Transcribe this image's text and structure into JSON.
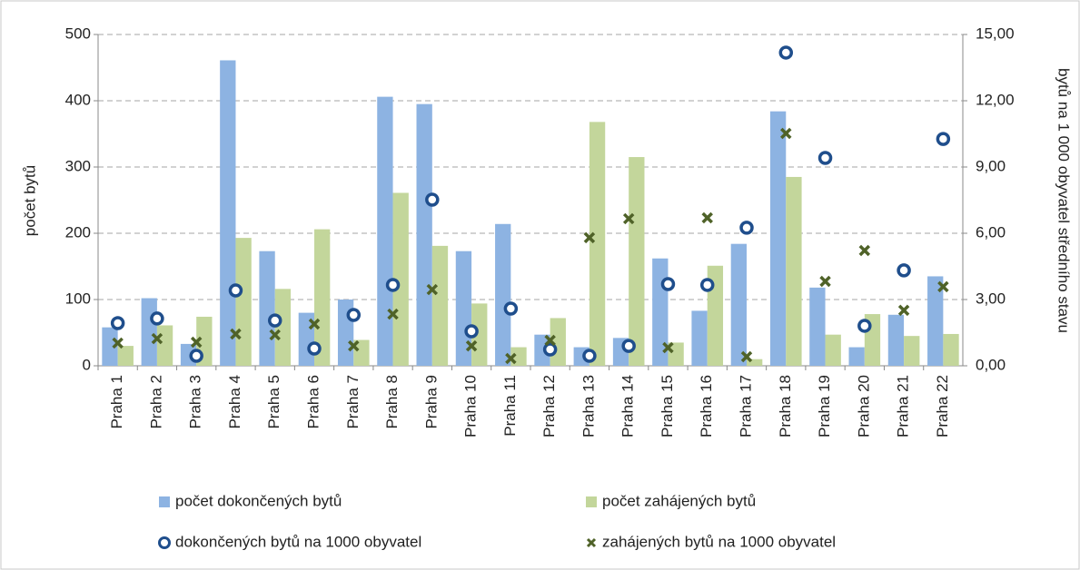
{
  "chart_data": {
    "type": "bar",
    "y_label": "počet bytů",
    "y2_label": "bytů na 1 000 obyvatel středního stavu",
    "categories": [
      "Praha 1",
      "Praha 2",
      "Praha 3",
      "Praha 4",
      "Praha 5",
      "Praha 6",
      "Praha 7",
      "Praha 8",
      "Praha 9",
      "Praha 10",
      "Praha 11",
      "Praha 12",
      "Praha 13",
      "Praha 14",
      "Praha 15",
      "Praha 16",
      "Praha 17",
      "Praha 18",
      "Praha 19",
      "Praha 20",
      "Praha 21",
      "Praha 22"
    ],
    "series": [
      {
        "name": "počet dokončených bytů",
        "type": "bar",
        "color": "#8db3e2",
        "values": [
          58,
          102,
          33,
          461,
          173,
          80,
          100,
          406,
          395,
          173,
          214,
          47,
          28,
          42,
          162,
          83,
          184,
          384,
          118,
          28,
          77,
          135
        ]
      },
      {
        "name": "počet zahájených bytů",
        "type": "bar",
        "color": "#c3d69b",
        "values": [
          30,
          61,
          74,
          193,
          116,
          206,
          39,
          261,
          181,
          94,
          28,
          72,
          368,
          315,
          35,
          151,
          10,
          285,
          47,
          78,
          45,
          48
        ]
      },
      {
        "name": "dokončených bytů na 1000 obyvatel",
        "type": "scatter",
        "marker": "o",
        "color": "#1f4e8c",
        "axis": "y2",
        "values": [
          1.93,
          2.14,
          0.45,
          3.41,
          2.05,
          0.78,
          2.3,
          3.66,
          7.52,
          1.56,
          2.59,
          0.74,
          0.45,
          0.9,
          3.7,
          3.66,
          6.25,
          14.18,
          9.41,
          1.81,
          4.32,
          10.27
        ]
      },
      {
        "name": "zahájených bytů na 1000 obyvatel",
        "type": "scatter",
        "marker": "x",
        "color": "#4f6228",
        "axis": "y2",
        "values": [
          1.03,
          1.23,
          1.07,
          1.44,
          1.4,
          1.89,
          0.9,
          2.34,
          3.45,
          0.9,
          0.33,
          1.15,
          5.8,
          6.66,
          0.82,
          6.7,
          0.41,
          10.52,
          3.82,
          5.22,
          2.51,
          3.58
        ]
      }
    ],
    "ylim": [
      0,
      500
    ],
    "yticks": [
      0,
      100,
      200,
      300,
      400,
      500
    ],
    "y2lim": [
      0,
      15
    ],
    "y2ticks": [
      {
        "value": 0,
        "label": "0,00"
      },
      {
        "value": 3,
        "label": "3,00"
      },
      {
        "value": 6,
        "label": "6,00"
      },
      {
        "value": 9,
        "label": "9,00"
      },
      {
        "value": 12,
        "label": "12,00"
      },
      {
        "value": 15,
        "label": "15,00"
      }
    ],
    "grid": true,
    "legend": "bottom"
  }
}
